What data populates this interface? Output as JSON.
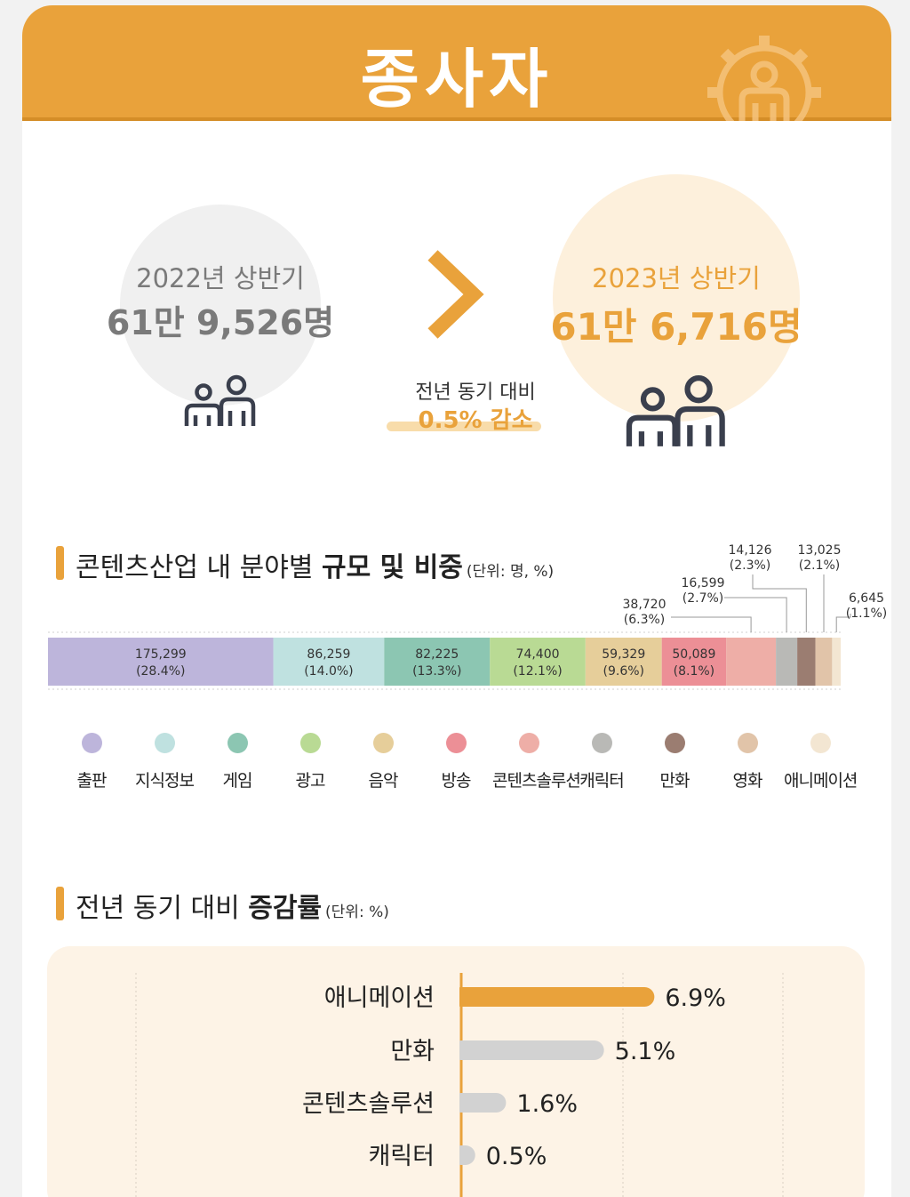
{
  "header": {
    "title": "종사자"
  },
  "summary": {
    "prev": {
      "period": "2022년 상반기",
      "value": "61만 9,526명"
    },
    "curr": {
      "period": "2023년 상반기",
      "value": "61만 6,716명"
    },
    "compare_label": "전년 동기 대비",
    "compare_value": "0.5% 감소"
  },
  "section1": {
    "title_plain": "콘텐츠산업 내 분야별 ",
    "title_bold": "규모 및 비중",
    "unit": "(단위: 명, %)"
  },
  "section2": {
    "title_plain": "전년 동기 대비 ",
    "title_bold": "증감률",
    "unit": "(단위: %)"
  },
  "colors": {
    "accent": "#e9a23b",
    "bar_highlight": "#e9a23b",
    "bar_default": "#d2d2d2",
    "prev_circle": "#f0f0f0",
    "curr_circle": "#fdf0dc",
    "prev_text": "#7a7a7a",
    "curr_text": "#e9a23b"
  },
  "chart_data": [
    {
      "type": "bar",
      "stacked": true,
      "orientation": "horizontal",
      "categories": [
        "출판",
        "지식정보",
        "게임",
        "광고",
        "음악",
        "방송",
        "콘텐츠솔루션",
        "캐릭터",
        "만화",
        "영화",
        "애니메이션"
      ],
      "values": [
        175299,
        86259,
        82225,
        74400,
        59329,
        50089,
        38720,
        16599,
        14126,
        13025,
        6645
      ],
      "value_labels": [
        "175,299",
        "86,259",
        "82,225",
        "74,400",
        "59,329",
        "50,089",
        "38,720",
        "16,599",
        "14,126",
        "13,025",
        "6,645"
      ],
      "shares": [
        "(28.4%)",
        "(14.0%)",
        "(13.3%)",
        "(12.1%)",
        "(9.6%)",
        "(8.1%)",
        "(6.3%)",
        "(2.7%)",
        "(2.3%)",
        "(2.1%)",
        "(1.1%)"
      ],
      "colors": [
        "#bdb5db",
        "#bfe1e0",
        "#8cc6b2",
        "#b9da94",
        "#e6ce9a",
        "#ec8f96",
        "#eeaea7",
        "#b9b9b6",
        "#9b7d71",
        "#e1c4a9",
        "#f3e6d2"
      ],
      "legend_position": "bottom"
    },
    {
      "type": "bar",
      "orientation": "horizontal",
      "categories": [
        "애니메이션",
        "만화",
        "콘텐츠솔루션",
        "캐릭터"
      ],
      "values": [
        6.9,
        5.1,
        1.6,
        0.5
      ],
      "value_labels": [
        "6.9%",
        "5.1%",
        "1.6%",
        "0.5%"
      ],
      "highlight": "애니메이션"
    }
  ]
}
